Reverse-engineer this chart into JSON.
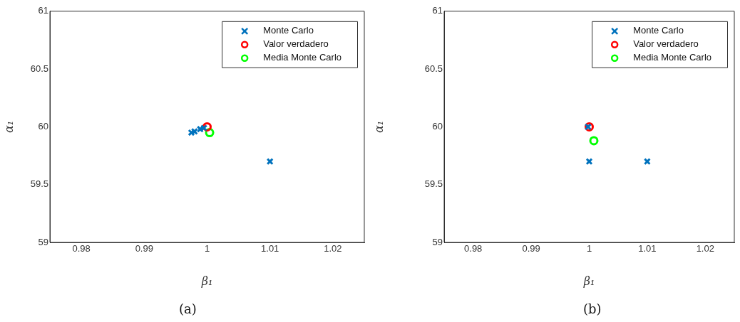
{
  "chart_data": [
    {
      "type": "scatter",
      "xlabel": "β₁",
      "ylabel": "α₁",
      "xlim": [
        0.975,
        1.025
      ],
      "xticks": [
        0.98,
        0.99,
        1,
        1.01,
        1.02
      ],
      "ylim": [
        59,
        61
      ],
      "yticks": [
        59,
        59.5,
        60,
        60.5,
        61
      ],
      "grid": false,
      "legend": "top right",
      "annotations": [
        "(a)"
      ],
      "series": [
        {
          "name": "Monte Carlo",
          "color": "#0072bd",
          "marker": "cross",
          "x": [
            0.9975,
            0.998,
            0.9989,
            0.9995,
            1.01
          ],
          "values": [
            59.95,
            59.96,
            59.98,
            59.99,
            59.7
          ]
        },
        {
          "name": "Valor verdadero",
          "color": "#ff0000",
          "marker": "circle",
          "x": [
            1
          ],
          "values": [
            60
          ]
        },
        {
          "name": "Media Monte Carlo",
          "color": "#00ff00",
          "marker": "circle",
          "x": [
            1.0004
          ],
          "values": [
            59.95
          ]
        }
      ]
    },
    {
      "type": "scatter",
      "xlabel": "β₁",
      "ylabel": "α₁",
      "xlim": [
        0.975,
        1.025
      ],
      "xticks": [
        0.98,
        0.99,
        1,
        1.01,
        1.02
      ],
      "ylim": [
        59,
        61
      ],
      "yticks": [
        59,
        59.5,
        60,
        60.5,
        61
      ],
      "grid": false,
      "legend": "top right",
      "annotations": [
        "(b)"
      ],
      "series": [
        {
          "name": "Monte Carlo",
          "color": "#0072bd",
          "marker": "cross",
          "x": [
            0.9998,
            1,
            1.01
          ],
          "values": [
            60,
            59.7,
            59.7
          ]
        },
        {
          "name": "Valor verdadero",
          "color": "#ff0000",
          "marker": "circle",
          "x": [
            1
          ],
          "values": [
            60
          ]
        },
        {
          "name": "Media Monte Carlo",
          "color": "#00ff00",
          "marker": "circle",
          "x": [
            1.0008
          ],
          "values": [
            59.88
          ]
        }
      ]
    }
  ]
}
